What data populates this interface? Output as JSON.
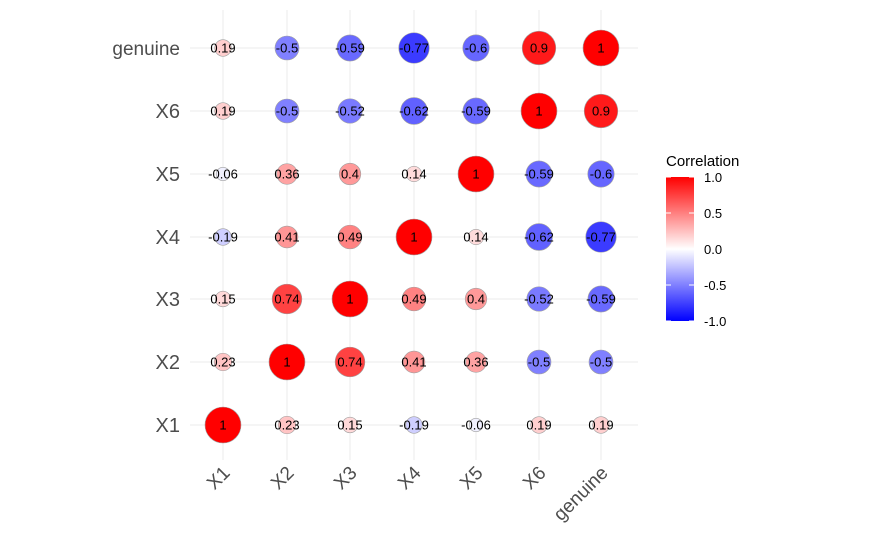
{
  "chart_data": {
    "type": "heatmap",
    "variables": [
      "X1",
      "X2",
      "X3",
      "X4",
      "X5",
      "X6",
      "genuine"
    ],
    "x_categories": [
      "X1",
      "X2",
      "X3",
      "X4",
      "X5",
      "X6",
      "genuine"
    ],
    "y_categories": [
      "X1",
      "X2",
      "X3",
      "X4",
      "X5",
      "X6",
      "genuine"
    ],
    "matrix": [
      [
        1,
        0.23,
        0.15,
        -0.19,
        -0.06,
        0.19,
        0.19
      ],
      [
        0.23,
        1,
        0.74,
        0.41,
        0.36,
        -0.5,
        -0.5
      ],
      [
        0.15,
        0.74,
        1,
        0.49,
        0.4,
        -0.52,
        -0.59
      ],
      [
        -0.19,
        0.41,
        0.49,
        1,
        0.14,
        -0.62,
        -0.77
      ],
      [
        -0.06,
        0.36,
        0.4,
        0.14,
        1,
        -0.59,
        -0.6
      ],
      [
        0.19,
        -0.5,
        -0.52,
        -0.62,
        -0.59,
        1,
        0.9
      ],
      [
        0.19,
        -0.5,
        -0.59,
        -0.77,
        -0.6,
        0.9,
        1
      ]
    ],
    "color_scale": {
      "low": "#0000ff",
      "mid": "#ffffff",
      "high": "#ff0000",
      "limits": [
        -1,
        1
      ]
    },
    "legend": {
      "title": "Correlation",
      "ticks": [
        "1.0",
        "0.5",
        "0.0",
        "-0.5",
        "-1.0"
      ],
      "tick_values": [
        1,
        0.5,
        0,
        -0.5,
        -1
      ],
      "placement": "right"
    },
    "grid": true,
    "marker": "circle",
    "x_tick_rotation_deg": -45
  }
}
